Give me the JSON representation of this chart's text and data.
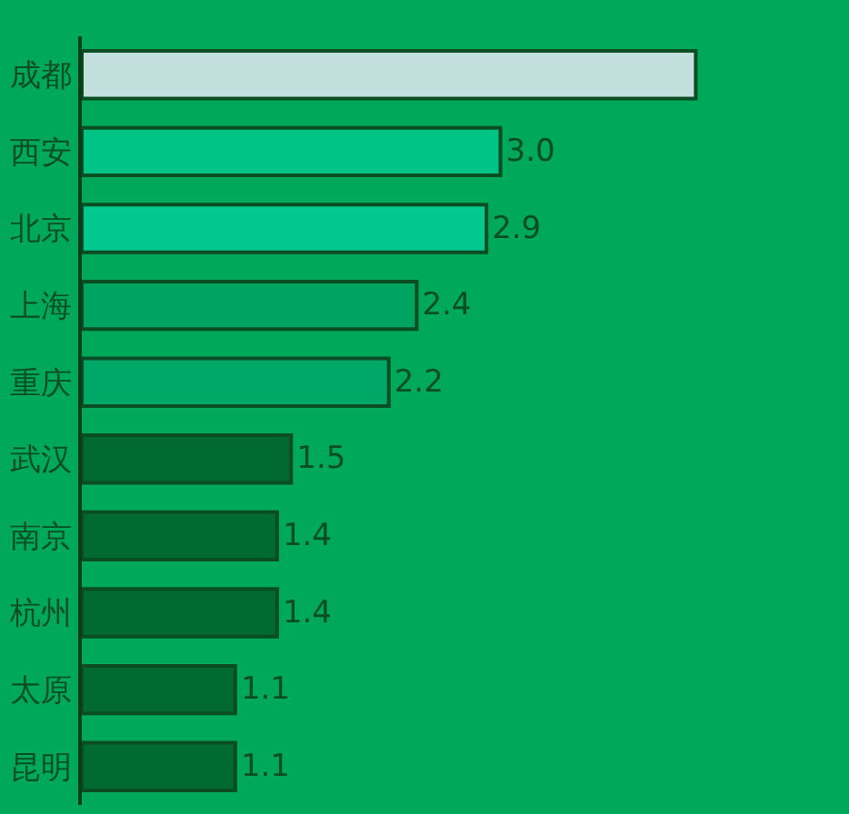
{
  "chart_data": {
    "type": "bar",
    "orientation": "horizontal",
    "categories": [
      "成都",
      "西安",
      "北京",
      "上海",
      "重庆",
      "武汉",
      "南京",
      "杭州",
      "太原",
      "昆明"
    ],
    "values": [
      4.4,
      3.0,
      2.9,
      2.4,
      2.2,
      1.5,
      1.4,
      1.4,
      1.1,
      1.1
    ],
    "value_labels": [
      null,
      "3.0",
      "2.9",
      "2.4",
      "2.2",
      "1.5",
      "1.4",
      "1.4",
      "1.1",
      "1.1"
    ],
    "colors": [
      "#c2dedd",
      "#00c486",
      "#00c88e",
      "#00a462",
      "#00a868",
      "#006a30",
      "#006a30",
      "#006a30",
      "#006a30",
      "#006a30"
    ],
    "grid": false,
    "legend": false
  }
}
